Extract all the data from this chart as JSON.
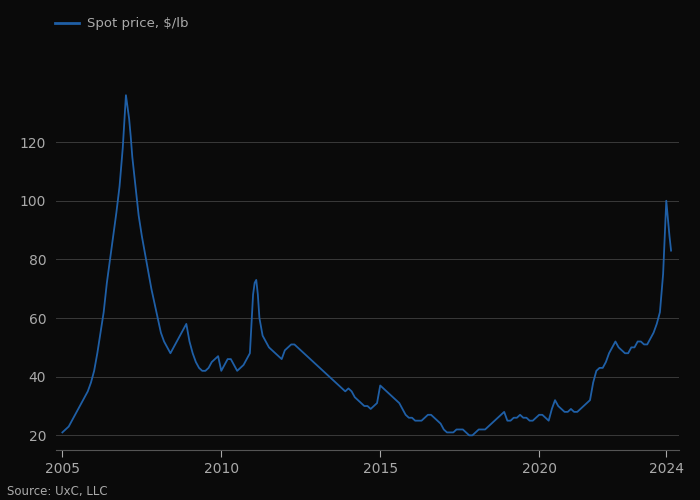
{
  "legend_label": "Spot price, $/lb",
  "source": "Source: UxC, LLC",
  "line_color": "#1f5fa6",
  "background_color": "#0a0a0a",
  "grid_color": "#3a3a3a",
  "text_color": "#aaaaaa",
  "tick_color": "#aaaaaa",
  "spine_color": "#555555",
  "xlim": [
    2004.8,
    2024.4
  ],
  "ylim": [
    15,
    148
  ],
  "yticks": [
    20,
    40,
    60,
    80,
    100,
    120
  ],
  "xticks": [
    2005,
    2010,
    2015,
    2020,
    2024
  ],
  "data": {
    "years": [
      2005.0,
      2005.1,
      2005.2,
      2005.3,
      2005.4,
      2005.5,
      2005.6,
      2005.7,
      2005.8,
      2005.9,
      2006.0,
      2006.1,
      2006.2,
      2006.3,
      2006.4,
      2006.5,
      2006.6,
      2006.7,
      2006.8,
      2006.9,
      2007.0,
      2007.05,
      2007.1,
      2007.15,
      2007.2,
      2007.3,
      2007.4,
      2007.5,
      2007.6,
      2007.7,
      2007.8,
      2007.9,
      2008.0,
      2008.1,
      2008.2,
      2008.3,
      2008.4,
      2008.5,
      2008.6,
      2008.7,
      2008.8,
      2008.9,
      2009.0,
      2009.1,
      2009.2,
      2009.3,
      2009.4,
      2009.5,
      2009.6,
      2009.7,
      2009.8,
      2009.9,
      2010.0,
      2010.1,
      2010.2,
      2010.3,
      2010.4,
      2010.5,
      2010.6,
      2010.7,
      2010.8,
      2010.9,
      2011.0,
      2011.05,
      2011.1,
      2011.15,
      2011.2,
      2011.3,
      2011.4,
      2011.5,
      2011.6,
      2011.7,
      2011.8,
      2011.9,
      2012.0,
      2012.1,
      2012.2,
      2012.3,
      2012.4,
      2012.5,
      2012.6,
      2012.7,
      2012.8,
      2012.9,
      2013.0,
      2013.1,
      2013.2,
      2013.3,
      2013.4,
      2013.5,
      2013.6,
      2013.7,
      2013.8,
      2013.9,
      2014.0,
      2014.1,
      2014.2,
      2014.3,
      2014.4,
      2014.5,
      2014.6,
      2014.7,
      2014.8,
      2014.9,
      2015.0,
      2015.1,
      2015.2,
      2015.3,
      2015.4,
      2015.5,
      2015.6,
      2015.7,
      2015.8,
      2015.9,
      2016.0,
      2016.1,
      2016.2,
      2016.3,
      2016.4,
      2016.5,
      2016.6,
      2016.7,
      2016.8,
      2016.9,
      2017.0,
      2017.1,
      2017.2,
      2017.3,
      2017.4,
      2017.5,
      2017.6,
      2017.7,
      2017.8,
      2017.9,
      2018.0,
      2018.1,
      2018.2,
      2018.3,
      2018.4,
      2018.5,
      2018.6,
      2018.7,
      2018.8,
      2018.9,
      2019.0,
      2019.1,
      2019.2,
      2019.3,
      2019.4,
      2019.5,
      2019.6,
      2019.7,
      2019.8,
      2019.9,
      2020.0,
      2020.1,
      2020.2,
      2020.3,
      2020.4,
      2020.5,
      2020.6,
      2020.7,
      2020.8,
      2020.9,
      2021.0,
      2021.1,
      2021.2,
      2021.3,
      2021.4,
      2021.5,
      2021.6,
      2021.7,
      2021.8,
      2021.9,
      2022.0,
      2022.1,
      2022.2,
      2022.3,
      2022.4,
      2022.5,
      2022.6,
      2022.7,
      2022.8,
      2022.9,
      2023.0,
      2023.1,
      2023.2,
      2023.3,
      2023.4,
      2023.5,
      2023.6,
      2023.7,
      2023.8,
      2023.9,
      2024.0,
      2024.1,
      2024.15
    ],
    "prices": [
      21,
      22,
      23,
      25,
      27,
      29,
      31,
      33,
      35,
      38,
      42,
      48,
      55,
      62,
      72,
      80,
      88,
      96,
      105,
      118,
      136,
      132,
      128,
      122,
      115,
      105,
      95,
      88,
      82,
      76,
      70,
      65,
      60,
      55,
      52,
      50,
      48,
      50,
      52,
      54,
      56,
      58,
      52,
      48,
      45,
      43,
      42,
      42,
      43,
      45,
      46,
      47,
      42,
      44,
      46,
      46,
      44,
      42,
      43,
      44,
      46,
      48,
      68,
      72,
      73,
      68,
      60,
      54,
      52,
      50,
      49,
      48,
      47,
      46,
      49,
      50,
      51,
      51,
      50,
      49,
      48,
      47,
      46,
      45,
      44,
      43,
      42,
      41,
      40,
      39,
      38,
      37,
      36,
      35,
      36,
      35,
      33,
      32,
      31,
      30,
      30,
      29,
      30,
      31,
      37,
      36,
      35,
      34,
      33,
      32,
      31,
      29,
      27,
      26,
      26,
      25,
      25,
      25,
      26,
      27,
      27,
      26,
      25,
      24,
      22,
      21,
      21,
      21,
      22,
      22,
      22,
      21,
      20,
      20,
      21,
      22,
      22,
      22,
      23,
      24,
      25,
      26,
      27,
      28,
      25,
      25,
      26,
      26,
      27,
      26,
      26,
      25,
      25,
      26,
      27,
      27,
      26,
      25,
      29,
      32,
      30,
      29,
      28,
      28,
      29,
      28,
      28,
      29,
      30,
      31,
      32,
      38,
      42,
      43,
      43,
      45,
      48,
      50,
      52,
      50,
      49,
      48,
      48,
      50,
      50,
      52,
      52,
      51,
      51,
      53,
      55,
      58,
      62,
      75,
      100,
      88,
      83
    ]
  }
}
